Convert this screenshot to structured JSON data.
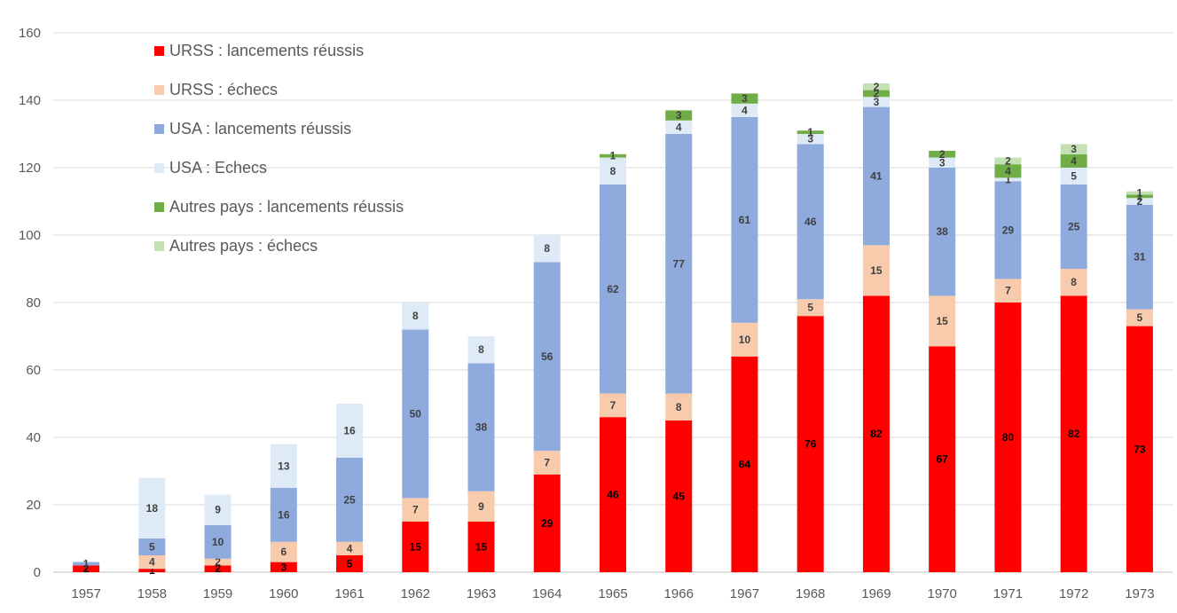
{
  "chart_data": {
    "type": "bar",
    "stacked": true,
    "categories": [
      "1957",
      "1958",
      "1959",
      "1960",
      "1961",
      "1962",
      "1963",
      "1964",
      "1965",
      "1966",
      "1967",
      "1968",
      "1969",
      "1970",
      "1971",
      "1972",
      "1973"
    ],
    "series": [
      {
        "name": "URSS : lancements réussis",
        "color": "#ff0000",
        "label_color": "#000000",
        "values": [
          2,
          1,
          2,
          3,
          5,
          15,
          15,
          29,
          46,
          45,
          64,
          76,
          82,
          67,
          80,
          82,
          73
        ]
      },
      {
        "name": "URSS : échecs",
        "color": "#f8cbad",
        "label_color": "#404040",
        "values": [
          0,
          4,
          2,
          6,
          4,
          7,
          9,
          7,
          7,
          8,
          10,
          5,
          15,
          15,
          7,
          8,
          5
        ]
      },
      {
        "name": "USA : lancements réussis",
        "color": "#8faadc",
        "label_color": "#404040",
        "values": [
          1,
          5,
          10,
          16,
          25,
          50,
          38,
          56,
          62,
          77,
          61,
          46,
          41,
          38,
          29,
          25,
          31
        ]
      },
      {
        "name": "USA : Echecs",
        "color": "#deebf7",
        "label_color": "#404040",
        "values": [
          0,
          18,
          9,
          13,
          16,
          8,
          8,
          8,
          8,
          4,
          4,
          3,
          3,
          3,
          1,
          5,
          2
        ]
      },
      {
        "name": "Autres pays : lancements réussis",
        "color": "#70ad47",
        "label_color": "#404040",
        "values": [
          0,
          0,
          0,
          0,
          0,
          0,
          0,
          0,
          1,
          3,
          3,
          1,
          2,
          2,
          4,
          4,
          1
        ]
      },
      {
        "name": "Autres pays : échecs",
        "color": "#c5e0b4",
        "label_color": "#404040",
        "values": [
          0,
          0,
          0,
          0,
          0,
          0,
          0,
          0,
          0,
          0,
          0,
          0,
          2,
          0,
          2,
          3,
          1
        ]
      }
    ],
    "yticks": [
      "0",
      "20",
      "40",
      "60",
      "80",
      "100",
      "120",
      "140",
      "160"
    ],
    "ylim": [
      0,
      160
    ],
    "grid": true,
    "legend_position": "top-left",
    "title": "",
    "xlabel": "",
    "ylabel": ""
  }
}
